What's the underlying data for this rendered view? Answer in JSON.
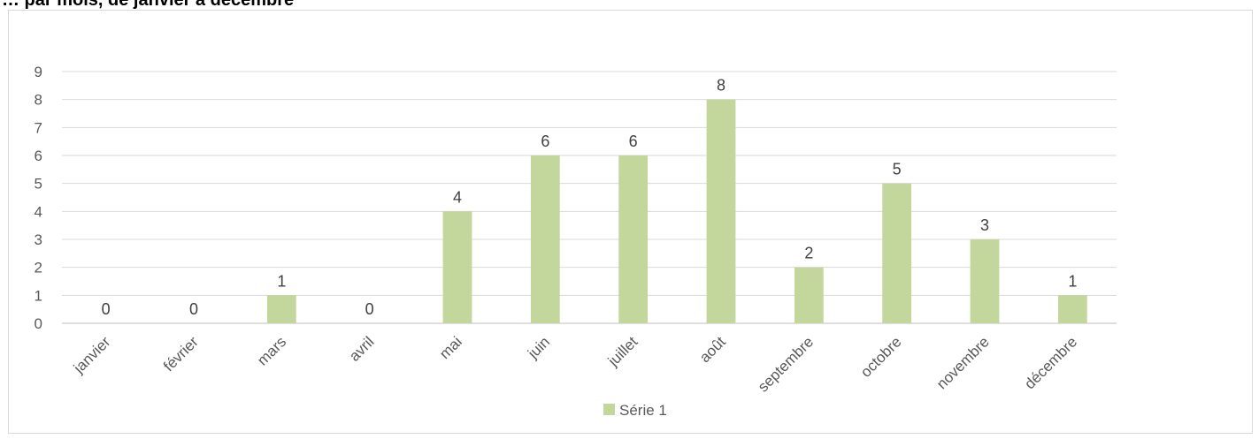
{
  "page": {
    "title": "… par mois, de janvier à décembre"
  },
  "chart_data": {
    "type": "bar",
    "categories": [
      "janvier",
      "février",
      "mars",
      "avril",
      "mai",
      "juin",
      "juillet",
      "août",
      "septembre",
      "octobre",
      "novembre",
      "décembre"
    ],
    "series": [
      {
        "name": "Série 1",
        "values": [
          0,
          0,
          1,
          0,
          4,
          6,
          6,
          8,
          2,
          5,
          3,
          1
        ],
        "color": "#c3d69b"
      }
    ],
    "ylim": [
      0,
      9
    ],
    "yticks": [
      "0",
      "1",
      "2",
      "3",
      "4",
      "5",
      "6",
      "7",
      "8",
      "9"
    ],
    "grid": true,
    "legend_position": "bottom",
    "data_labels": true
  }
}
